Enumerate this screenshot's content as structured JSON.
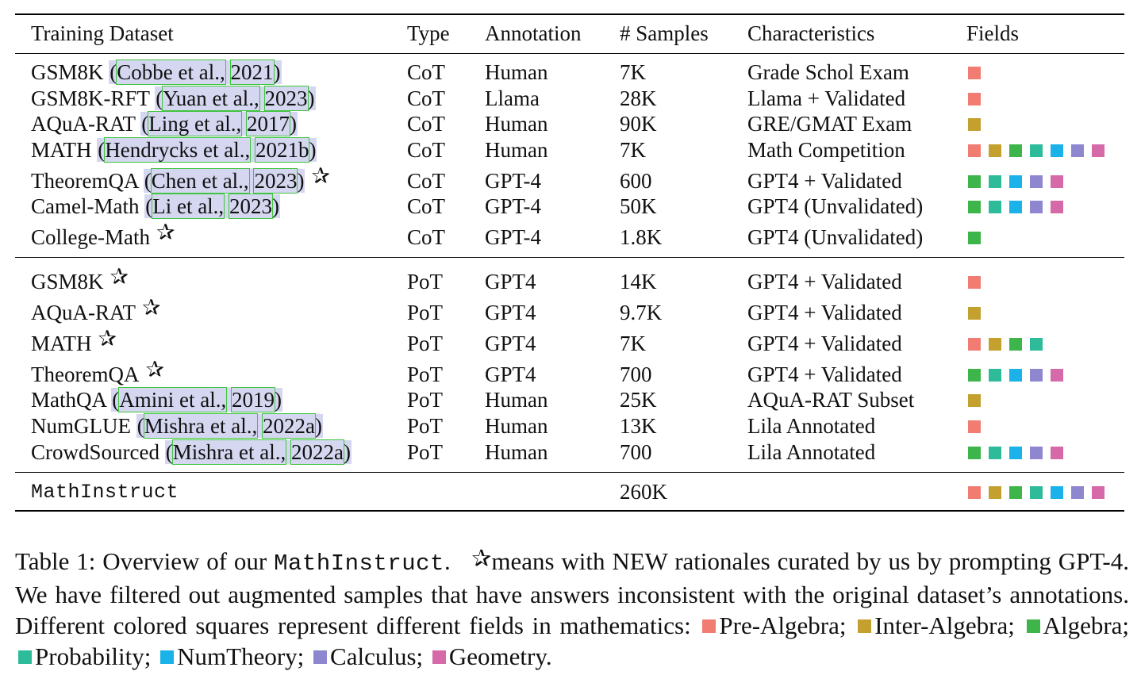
{
  "table": {
    "headers": {
      "dataset": "Training Dataset",
      "type": "Type",
      "annotation": "Annotation",
      "samples": "# Samples",
      "characteristics": "Characteristics",
      "fields": "Fields"
    },
    "colors": {
      "pre_algebra": "#f07c72",
      "inter_algebra": "#c4a02e",
      "algebra": "#3db54a",
      "probability": "#2dbb9a",
      "numtheory": "#1ab2e8",
      "calculus": "#8e87cf",
      "geometry": "#d66aa8"
    },
    "rows": [
      {
        "name": "GSM8K",
        "cite_author": "Cobbe et al.,",
        "cite_year": "2021",
        "new": false,
        "type": "CoT",
        "annotation": "Human",
        "samples": "7K",
        "characteristics": "Grade Schol Exam",
        "fields": [
          "pre_algebra"
        ]
      },
      {
        "name": "GSM8K-RFT",
        "cite_author": "Yuan et al.,",
        "cite_year": "2023",
        "new": false,
        "type": "CoT",
        "annotation": "Llama",
        "samples": "28K",
        "characteristics": "Llama + Validated",
        "fields": [
          "pre_algebra"
        ]
      },
      {
        "name": "AQuA-RAT",
        "cite_author": "Ling et al.,",
        "cite_year": "2017",
        "new": false,
        "type": "CoT",
        "annotation": "Human",
        "samples": "90K",
        "characteristics": "GRE/GMAT Exam",
        "fields": [
          "inter_algebra"
        ]
      },
      {
        "name": "MATH",
        "cite_author": "Hendrycks et al.,",
        "cite_year": "2021b",
        "new": false,
        "type": "CoT",
        "annotation": "Human",
        "samples": "7K",
        "characteristics": "Math Competition",
        "fields": [
          "pre_algebra",
          "inter_algebra",
          "algebra",
          "probability",
          "numtheory",
          "calculus",
          "geometry"
        ]
      },
      {
        "name": "TheoremQA",
        "cite_author": "Chen et al.,",
        "cite_year": "2023",
        "new": true,
        "type": "CoT",
        "annotation": "GPT-4",
        "samples": "600",
        "characteristics": "GPT4 + Validated",
        "fields": [
          "algebra",
          "probability",
          "numtheory",
          "calculus",
          "geometry"
        ]
      },
      {
        "name": "Camel-Math",
        "cite_author": "Li et al.,",
        "cite_year": "2023",
        "new": false,
        "type": "CoT",
        "annotation": "GPT-4",
        "samples": "50K",
        "characteristics": "GPT4 (Unvalidated)",
        "fields": [
          "algebra",
          "probability",
          "numtheory",
          "calculus",
          "geometry"
        ]
      },
      {
        "name": "College-Math",
        "cite_author": "",
        "cite_year": "",
        "new": true,
        "type": "CoT",
        "annotation": "GPT-4",
        "samples": "1.8K",
        "characteristics": "GPT4 (Unvalidated)",
        "fields": [
          "algebra"
        ]
      },
      {
        "name": "GSM8K",
        "cite_author": "",
        "cite_year": "",
        "new": true,
        "type": "PoT",
        "annotation": "GPT4",
        "samples": "14K",
        "characteristics": "GPT4 + Validated",
        "fields": [
          "pre_algebra"
        ]
      },
      {
        "name": "AQuA-RAT",
        "cite_author": "",
        "cite_year": "",
        "new": true,
        "type": "PoT",
        "annotation": "GPT4",
        "samples": "9.7K",
        "characteristics": "GPT4 + Validated",
        "fields": [
          "inter_algebra"
        ]
      },
      {
        "name": "MATH",
        "cite_author": "",
        "cite_year": "",
        "new": true,
        "type": "PoT",
        "annotation": "GPT4",
        "samples": "7K",
        "characteristics": "GPT4 + Validated",
        "fields": [
          "pre_algebra",
          "inter_algebra",
          "algebra",
          "probability"
        ]
      },
      {
        "name": "TheoremQA",
        "cite_author": "",
        "cite_year": "",
        "new": true,
        "type": "PoT",
        "annotation": "GPT4",
        "samples": "700",
        "characteristics": "GPT4 + Validated",
        "fields": [
          "algebra",
          "probability",
          "numtheory",
          "calculus",
          "geometry"
        ]
      },
      {
        "name": "MathQA",
        "cite_author": "Amini et al.,",
        "cite_year": "2019",
        "new": false,
        "type": "PoT",
        "annotation": "Human",
        "samples": "25K",
        "characteristics": "AQuA-RAT Subset",
        "fields": [
          "inter_algebra"
        ]
      },
      {
        "name": "NumGLUE",
        "cite_author": "Mishra et al.,",
        "cite_year": "2022a",
        "new": false,
        "type": "PoT",
        "annotation": "Human",
        "samples": "13K",
        "characteristics": "Lila Annotated",
        "fields": [
          "pre_algebra"
        ]
      },
      {
        "name": "CrowdSourced",
        "cite_author": "Mishra et al.,",
        "cite_year": "2022a",
        "new": false,
        "type": "PoT",
        "annotation": "Human",
        "samples": "700",
        "characteristics": "Lila Annotated",
        "fields": [
          "algebra",
          "probability",
          "numtheory",
          "calculus",
          "geometry"
        ]
      }
    ],
    "total": {
      "name": "MathInstruct",
      "samples": "260K",
      "fields": [
        "pre_algebra",
        "inter_algebra",
        "algebra",
        "probability",
        "numtheory",
        "calculus",
        "geometry"
      ]
    }
  },
  "caption": {
    "label": "Table 1:",
    "p1": "Overview of our",
    "mono": "MathInstruct",
    "p2": ".",
    "p3": "means with NEW rationales curated by us by prompting GPT-4. We have filtered out augmented samples that have answers inconsistent with the original dataset’s annotations. Different colored squares represent different fields in mathematics:",
    "legend": [
      {
        "key": "pre_algebra",
        "label": "Pre-Algebra;"
      },
      {
        "key": "inter_algebra",
        "label": "Inter-Algebra;"
      },
      {
        "key": "algebra",
        "label": "Algebra;"
      },
      {
        "key": "probability",
        "label": "Probability;"
      },
      {
        "key": "numtheory",
        "label": "NumTheory;"
      },
      {
        "key": "calculus",
        "label": "Calculus;"
      },
      {
        "key": "geometry",
        "label": "Geometry."
      }
    ]
  }
}
